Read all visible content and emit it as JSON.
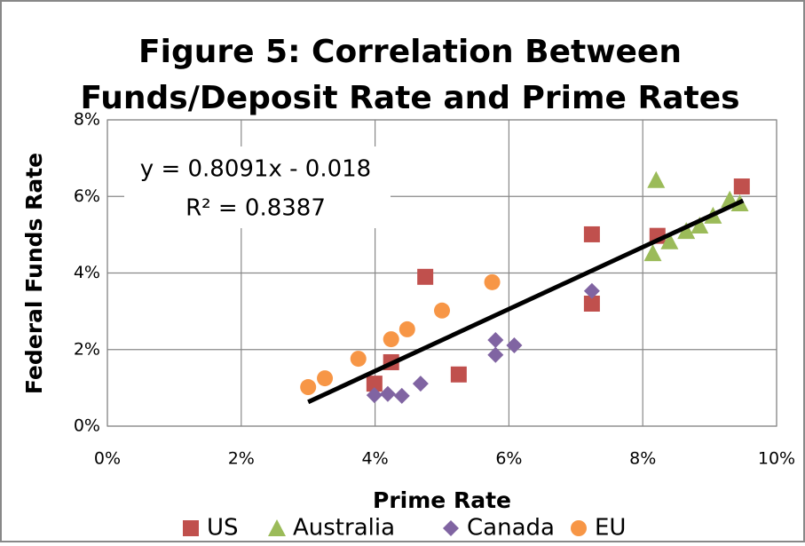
{
  "chart_data": {
    "type": "scatter",
    "title": "Figure 5: Correlation Between",
    "subtitle": "Funds/Deposit Rate and Prime Rates",
    "x_label": "Prime Rate",
    "y_label": "Federal Funds Rate",
    "annotations": [
      "y = 0.8091x - 0.018",
      "R² = 0.8387"
    ],
    "xlim": [
      0,
      10
    ],
    "ylim": [
      0,
      8
    ],
    "xticks": [
      {
        "value": 0,
        "label": "0%"
      },
      {
        "value": 2,
        "label": "2%"
      },
      {
        "value": 4,
        "label": "4%"
      },
      {
        "value": 6,
        "label": "6%"
      },
      {
        "value": 8,
        "label": "8%"
      },
      {
        "value": 10,
        "label": "10%"
      }
    ],
    "yticks": [
      {
        "value": 0,
        "label": "0%"
      },
      {
        "value": 2,
        "label": "2%"
      },
      {
        "value": 4,
        "label": "4%"
      },
      {
        "value": 6,
        "label": "6%"
      },
      {
        "value": 8,
        "label": "8%"
      }
    ],
    "grid": true,
    "legend": "bottom",
    "series": [
      {
        "name": "US",
        "color": "#c0504d",
        "marker": "square",
        "x": [
          3.99,
          4.24,
          4.75,
          5.25,
          7.24,
          7.24,
          8.22,
          9.48
        ],
        "values": [
          1.11,
          1.67,
          3.9,
          1.35,
          5.01,
          3.2,
          4.97,
          6.26
        ]
      },
      {
        "name": "Australia",
        "color": "#9bbb59",
        "marker": "triangle",
        "x": [
          8.2,
          8.15,
          8.4,
          8.65,
          8.85,
          9.05,
          9.3,
          9.45
        ],
        "values": [
          6.43,
          4.52,
          4.83,
          5.1,
          5.24,
          5.5,
          5.92,
          5.82
        ]
      },
      {
        "name": "Canada",
        "color": "#8064a2",
        "marker": "diamond",
        "x": [
          3.99,
          4.19,
          4.4,
          4.68,
          5.8,
          5.8,
          6.08,
          7.24
        ],
        "values": [
          0.81,
          0.84,
          0.79,
          1.11,
          2.25,
          1.86,
          2.11,
          3.53
        ]
      },
      {
        "name": "EU",
        "color": "#f79646",
        "marker": "circle",
        "x": [
          3.0,
          3.25,
          3.75,
          4.24,
          4.48,
          5.0,
          5.75
        ],
        "values": [
          1.02,
          1.25,
          1.76,
          2.27,
          2.53,
          3.02,
          3.76
        ]
      }
    ],
    "trendline": {
      "color": "#000000",
      "x": [
        3.0,
        9.5
      ],
      "values": [
        0.63,
        5.89
      ]
    }
  }
}
